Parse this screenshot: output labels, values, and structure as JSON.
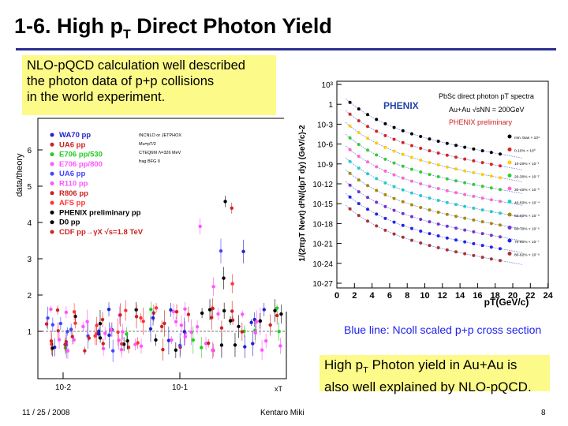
{
  "slide": {
    "title_prefix": "1-6. High p",
    "title_sub": "T",
    "title_suffix": " Direct Photon Yield"
  },
  "note_box": {
    "lines": [
      "NLO-pQCD calculation well described",
      "the photon data of p+p collisions",
      "in the world experiment."
    ]
  },
  "left_plot": {
    "ylabel": "data/theory",
    "xlabel": "xT",
    "yticks": [
      "1",
      "2",
      "3",
      "4",
      "5",
      "6"
    ],
    "xticks": [
      "10-2",
      "10-1"
    ],
    "header": [
      "INCNLO or JETPHOX",
      "Mu=pT/2",
      "CTEQ6M Λ=326 MeV",
      "frag BFG II"
    ],
    "legend": [
      {
        "label": "WA70 pp",
        "color": "#2222cc"
      },
      {
        "label": "UA6 pp",
        "color": "#cc2222"
      },
      {
        "label": "E706 pp/530",
        "color": "#22cc22"
      },
      {
        "label": "E706 pp/800",
        "color": "#ff55ff"
      },
      {
        "label": "UA6 pp",
        "color": "#4444ff"
      },
      {
        "label": "R110 pp",
        "color": "#ff55ff"
      },
      {
        "label": "R806 pp",
        "color": "#cc2222"
      },
      {
        "label": "AFS pp",
        "color": "#ff3333"
      },
      {
        "label": "PHENIX preliminary pp",
        "color": "#000000"
      },
      {
        "label": "D0 pp",
        "color": "#000000"
      },
      {
        "label": "CDF pp→γX √s=1.8 TeV",
        "color": "#cc2222"
      }
    ]
  },
  "right_plot": {
    "title": "PbSc direct photon pT spectra",
    "system": "Au+Au √sNN = 200GeV",
    "experiment": "PHENIX",
    "preliminary": "PHENIX preliminary",
    "ylabel": "1/(2πpT Nevt) d²N/(dpT dy) (GeV/c)-2",
    "xlabel": "pT(GeV/c)",
    "xticks": [
      "0",
      "2",
      "4",
      "6",
      "8",
      "10",
      "12",
      "14",
      "16",
      "18",
      "20",
      "22",
      "24"
    ],
    "yticks": [
      "10³",
      "1",
      "10-3",
      "10-6",
      "10-9",
      "10-12",
      "10-15",
      "10-18",
      "10-21",
      "10-24",
      "10-27"
    ],
    "legend": [
      {
        "label": "min. bias × 10⁴",
        "color": "#000000"
      },
      {
        "label": "0-10% × 10⁰",
        "color": "#dd2222"
      },
      {
        "label": "10-20% × 10⁻¹",
        "color": "#ffcc00"
      },
      {
        "label": "20-30% × 10⁻²",
        "color": "#33cc33"
      },
      {
        "label": "30-40% × 10⁻³",
        "color": "#ff66cc"
      },
      {
        "label": "40-50% × 10⁻⁴",
        "color": "#22cccc"
      },
      {
        "label": "50-60% × 10⁻⁵",
        "color": "#aa8800"
      },
      {
        "label": "60-70% × 10⁻⁶",
        "color": "#7733cc"
      },
      {
        "label": "70-80% × 10⁻⁷",
        "color": "#2222ee"
      },
      {
        "label": "80-92% × 10⁻⁸",
        "color": "#aa3333"
      }
    ]
  },
  "caption_blue": "Blue line: Ncoll scaled p+p cross section",
  "caption_yield": {
    "line1_prefix": "High p",
    "line1_sub": "T",
    "line1_suffix": " Photon yield in Au+Au is",
    "line2": "also well explained by NLO-pQCD."
  },
  "footer": {
    "date": "11 / 25 / 2008",
    "author": "Kentaro Miki",
    "page": "8"
  },
  "colors": {
    "title_rule": "#2b2f8f",
    "highlight": "#fcfa88",
    "caption_blue": "#2222ee"
  }
}
